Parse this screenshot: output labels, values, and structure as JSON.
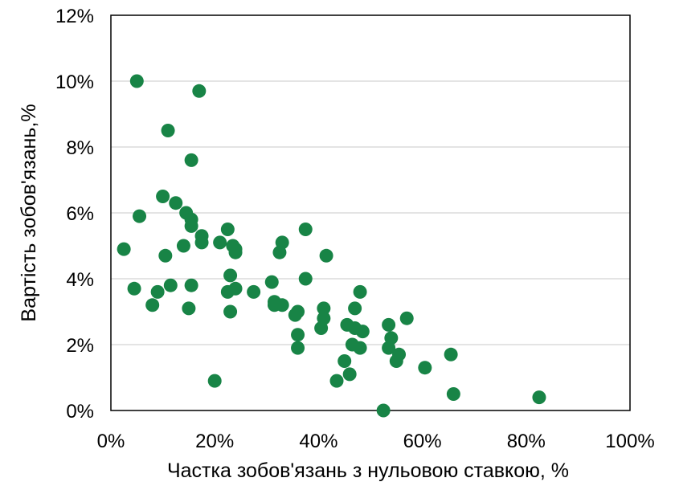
{
  "chart_data": {
    "type": "scatter",
    "xlabel": "Частка зобов'язань з нульовою ставкою, %",
    "ylabel": "Вартість зобов'язань,%",
    "xlim": [
      0,
      100
    ],
    "ylim": [
      0,
      12
    ],
    "x_ticks": [
      0,
      20,
      40,
      60,
      80,
      100
    ],
    "y_ticks": [
      0,
      2,
      4,
      6,
      8,
      10,
      12
    ],
    "x_tick_labels": [
      "0%",
      "20%",
      "40%",
      "60%",
      "80%",
      "100%"
    ],
    "y_tick_labels": [
      "0%",
      "2%",
      "4%",
      "6%",
      "8%",
      "10%",
      "12%"
    ],
    "grid": "horizontal",
    "legend": "none",
    "marker_color": "#188446",
    "points": [
      {
        "x": 5.0,
        "y": 10.0
      },
      {
        "x": 17.0,
        "y": 9.7
      },
      {
        "x": 11.0,
        "y": 8.5
      },
      {
        "x": 15.5,
        "y": 7.6
      },
      {
        "x": 10.0,
        "y": 6.5
      },
      {
        "x": 12.5,
        "y": 6.3
      },
      {
        "x": 14.5,
        "y": 6.0
      },
      {
        "x": 5.5,
        "y": 5.9
      },
      {
        "x": 15.5,
        "y": 5.8
      },
      {
        "x": 15.5,
        "y": 5.6
      },
      {
        "x": 22.5,
        "y": 5.5
      },
      {
        "x": 37.5,
        "y": 5.5
      },
      {
        "x": 17.5,
        "y": 5.3
      },
      {
        "x": 17.5,
        "y": 5.1
      },
      {
        "x": 21.0,
        "y": 5.1
      },
      {
        "x": 14.0,
        "y": 5.0
      },
      {
        "x": 23.5,
        "y": 5.0
      },
      {
        "x": 33.0,
        "y": 5.1
      },
      {
        "x": 2.5,
        "y": 4.9
      },
      {
        "x": 24.0,
        "y": 4.9
      },
      {
        "x": 24.0,
        "y": 4.8
      },
      {
        "x": 32.5,
        "y": 4.8
      },
      {
        "x": 10.5,
        "y": 4.7
      },
      {
        "x": 41.5,
        "y": 4.7
      },
      {
        "x": 23.0,
        "y": 4.1
      },
      {
        "x": 37.5,
        "y": 4.0
      },
      {
        "x": 31.0,
        "y": 3.9
      },
      {
        "x": 4.5,
        "y": 3.7
      },
      {
        "x": 24.0,
        "y": 3.7
      },
      {
        "x": 9.0,
        "y": 3.6
      },
      {
        "x": 11.5,
        "y": 3.8
      },
      {
        "x": 15.5,
        "y": 3.8
      },
      {
        "x": 22.5,
        "y": 3.6
      },
      {
        "x": 27.5,
        "y": 3.6
      },
      {
        "x": 48.0,
        "y": 3.6
      },
      {
        "x": 31.5,
        "y": 3.3
      },
      {
        "x": 31.5,
        "y": 3.2
      },
      {
        "x": 33.0,
        "y": 3.2
      },
      {
        "x": 8.0,
        "y": 3.2
      },
      {
        "x": 15.0,
        "y": 3.1
      },
      {
        "x": 41.0,
        "y": 3.1
      },
      {
        "x": 47.0,
        "y": 3.1
      },
      {
        "x": 36.0,
        "y": 3.0
      },
      {
        "x": 23.0,
        "y": 3.0
      },
      {
        "x": 35.5,
        "y": 2.9
      },
      {
        "x": 57.0,
        "y": 2.8
      },
      {
        "x": 41.0,
        "y": 2.8
      },
      {
        "x": 45.5,
        "y": 2.6
      },
      {
        "x": 53.5,
        "y": 2.6
      },
      {
        "x": 40.5,
        "y": 2.5
      },
      {
        "x": 47.0,
        "y": 2.5
      },
      {
        "x": 48.5,
        "y": 2.4
      },
      {
        "x": 36.0,
        "y": 2.3
      },
      {
        "x": 54.0,
        "y": 2.2
      },
      {
        "x": 46.5,
        "y": 2.0
      },
      {
        "x": 36.0,
        "y": 1.9
      },
      {
        "x": 48.0,
        "y": 1.9
      },
      {
        "x": 53.5,
        "y": 1.9
      },
      {
        "x": 65.5,
        "y": 1.7
      },
      {
        "x": 55.5,
        "y": 1.7
      },
      {
        "x": 55.0,
        "y": 1.5
      },
      {
        "x": 45.0,
        "y": 1.5
      },
      {
        "x": 60.5,
        "y": 1.3
      },
      {
        "x": 46.0,
        "y": 1.1
      },
      {
        "x": 20.0,
        "y": 0.9
      },
      {
        "x": 43.5,
        "y": 0.9
      },
      {
        "x": 66.0,
        "y": 0.5
      },
      {
        "x": 82.5,
        "y": 0.4
      },
      {
        "x": 52.5,
        "y": 0.0
      }
    ]
  }
}
